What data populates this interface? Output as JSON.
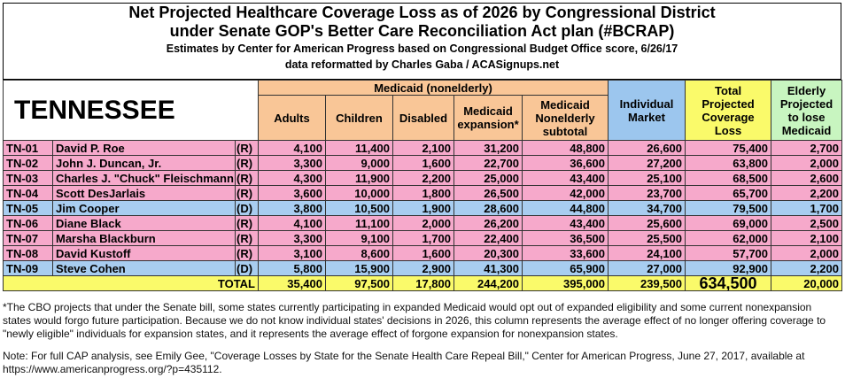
{
  "header": {
    "title_lines": [
      "Net Projected Healthcare Coverage Loss as of 2026 by Congressional District",
      "under Senate GOP's Better Care Reconciliation Act plan (#BCRAP)"
    ],
    "subtitle": "Estimates by Center for American Progress based on Congressional Budget Office score, 6/26/17",
    "credit": "data reformatted by Charles Gaba / ACASignups.net"
  },
  "table": {
    "state": "TENNESSEE",
    "group_header": "Medicaid (nonelderly)",
    "group_color": "#f9c697",
    "medicaid_columns": [
      "Adults",
      "Children",
      "Disabled",
      "Medicaid expansion*",
      "Medicaid Nonelderly subtotal"
    ],
    "other_columns": [
      {
        "label": "Individual Market",
        "color": "#9cc6ee"
      },
      {
        "label": "Total Projected Coverage Loss",
        "color": "#fafa6a"
      },
      {
        "label": "Elderly Projected to lose Medicaid",
        "color": "#c8f5c0"
      }
    ],
    "rows": [
      {
        "district": "TN-01",
        "name": "David P. Roe",
        "party": "(R)",
        "color": "#f6a9cb",
        "values": [
          "4,100",
          "11,400",
          "2,100",
          "31,200",
          "48,800",
          "26,600",
          "75,400",
          "2,700"
        ]
      },
      {
        "district": "TN-02",
        "name": "John J. Duncan, Jr.",
        "party": "(R)",
        "color": "#f6a9cb",
        "values": [
          "3,300",
          "9,000",
          "1,600",
          "22,700",
          "36,600",
          "27,200",
          "63,800",
          "2,000"
        ]
      },
      {
        "district": "TN-03",
        "name": "Charles J. \"Chuck\" Fleischmann",
        "party": "(R)",
        "color": "#f6a9cb",
        "values": [
          "4,300",
          "11,900",
          "2,200",
          "25,000",
          "43,400",
          "25,100",
          "68,500",
          "2,600"
        ]
      },
      {
        "district": "TN-04",
        "name": "Scott DesJarlais",
        "party": "(R)",
        "color": "#f6a9cb",
        "values": [
          "3,600",
          "10,000",
          "1,800",
          "26,500",
          "42,000",
          "23,700",
          "65,700",
          "2,200"
        ]
      },
      {
        "district": "TN-05",
        "name": "Jim Cooper",
        "party": "(D)",
        "color": "#a8cdf0",
        "values": [
          "3,800",
          "10,500",
          "1,900",
          "28,600",
          "44,800",
          "34,700",
          "79,500",
          "1,700"
        ]
      },
      {
        "district": "TN-06",
        "name": "Diane Black",
        "party": "(R)",
        "color": "#f6a9cb",
        "values": [
          "4,100",
          "11,100",
          "2,000",
          "26,200",
          "43,400",
          "25,600",
          "69,000",
          "2,500"
        ]
      },
      {
        "district": "TN-07",
        "name": "Marsha Blackburn",
        "party": "(R)",
        "color": "#f6a9cb",
        "values": [
          "3,300",
          "9,100",
          "1,700",
          "22,400",
          "36,500",
          "25,500",
          "62,000",
          "2,100"
        ]
      },
      {
        "district": "TN-08",
        "name": "David Kustoff",
        "party": "(R)",
        "color": "#f6a9cb",
        "values": [
          "3,100",
          "8,600",
          "1,600",
          "20,300",
          "33,600",
          "24,100",
          "57,700",
          "2,000"
        ]
      },
      {
        "district": "TN-09",
        "name": "Steve Cohen",
        "party": "(D)",
        "color": "#a8cdf0",
        "values": [
          "5,800",
          "15,900",
          "2,900",
          "41,300",
          "65,900",
          "27,000",
          "92,900",
          "2,200"
        ]
      }
    ],
    "total": {
      "label": "TOTAL",
      "color": "#fafa6a",
      "values": [
        "35,400",
        "97,500",
        "17,800",
        "244,200",
        "395,000",
        "239,500",
        "634,500",
        "20,000"
      ]
    }
  },
  "notes": [
    "*The CBO projects that under the Senate bill, some states currently participating in expanded Medicaid would opt out of expanded eligibility and some current nonexpansion states would forgo future participation. Because we do not know individual states' decisions in 2026, this column represents the average effect of no longer offering coverage to \"newly eligible\" individuals for expansion states, and it represents the average effect of forgone expansion for nonexpansion states.",
    "Note: For full CAP analysis, see Emily Gee, \"Coverage Losses by State for the Senate Health Care Repeal Bill,\" Center for American Progress, June 27, 2017, available at https://www.americanprogress.org/?p=435112."
  ]
}
